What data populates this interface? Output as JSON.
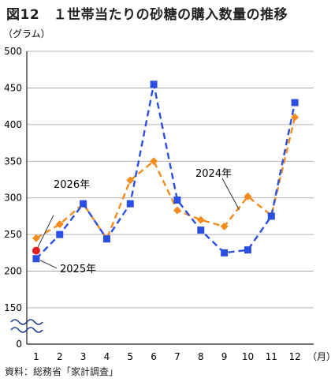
{
  "title": "図12　１世帯当たりの砂糖の購入数量の推移",
  "source": "資料：総務省「家計調査」",
  "chart_data": {
    "type": "line",
    "unit_label": "（グラム）",
    "x_unit": "（月）",
    "categories": [
      "1",
      "2",
      "3",
      "4",
      "5",
      "6",
      "7",
      "8",
      "9",
      "10",
      "11",
      "12"
    ],
    "y_ticks": [
      0,
      150,
      200,
      250,
      300,
      350,
      400,
      450,
      500
    ],
    "ylim_displayed": [
      150,
      500
    ],
    "axis_break": true,
    "grid": "horizontal",
    "series": [
      {
        "name": "2024年",
        "color": "#f28c1e",
        "marker": "diamond",
        "dash": "dashed",
        "values": [
          245,
          264,
          292,
          244,
          324,
          350,
          283,
          270,
          261,
          302,
          276,
          410
        ]
      },
      {
        "name": "2025年",
        "color": "#2b4fe0",
        "marker": "square",
        "dash": "dashed",
        "values": [
          217,
          250,
          292,
          244,
          292,
          455,
          297,
          256,
          225,
          229,
          275,
          430
        ]
      }
    ],
    "annotations": [
      {
        "text": "2026年",
        "x": "1",
        "y": 228,
        "marker_color": "#e62020"
      },
      {
        "text": "2025年",
        "series": "2025年"
      },
      {
        "text": "2024年",
        "series": "2024年"
      }
    ]
  }
}
